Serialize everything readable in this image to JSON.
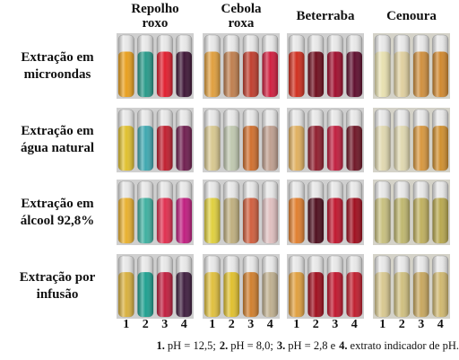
{
  "headers": [
    [
      "Repolho",
      "roxo"
    ],
    [
      "Cebola",
      "roxa"
    ],
    [
      "Beterraba"
    ],
    [
      "Cenoura"
    ]
  ],
  "rows": [
    [
      "Extração em",
      "microondas"
    ],
    [
      "Extração em",
      "água natural"
    ],
    [
      "Extração em",
      "álcool 92,8%"
    ],
    [
      "Extração por",
      "infusão"
    ]
  ],
  "tube_numbers": [
    "1",
    "2",
    "3",
    "4"
  ],
  "caption": [
    {
      "number": "1.",
      "text": "pH = 12,5;"
    },
    {
      "number": "2.",
      "text": "pH = 8,0;"
    },
    {
      "number": "3.",
      "text": "pH = 2,8 e"
    },
    {
      "number": "4.",
      "text": "extrato indicador de pH."
    }
  ]
}
